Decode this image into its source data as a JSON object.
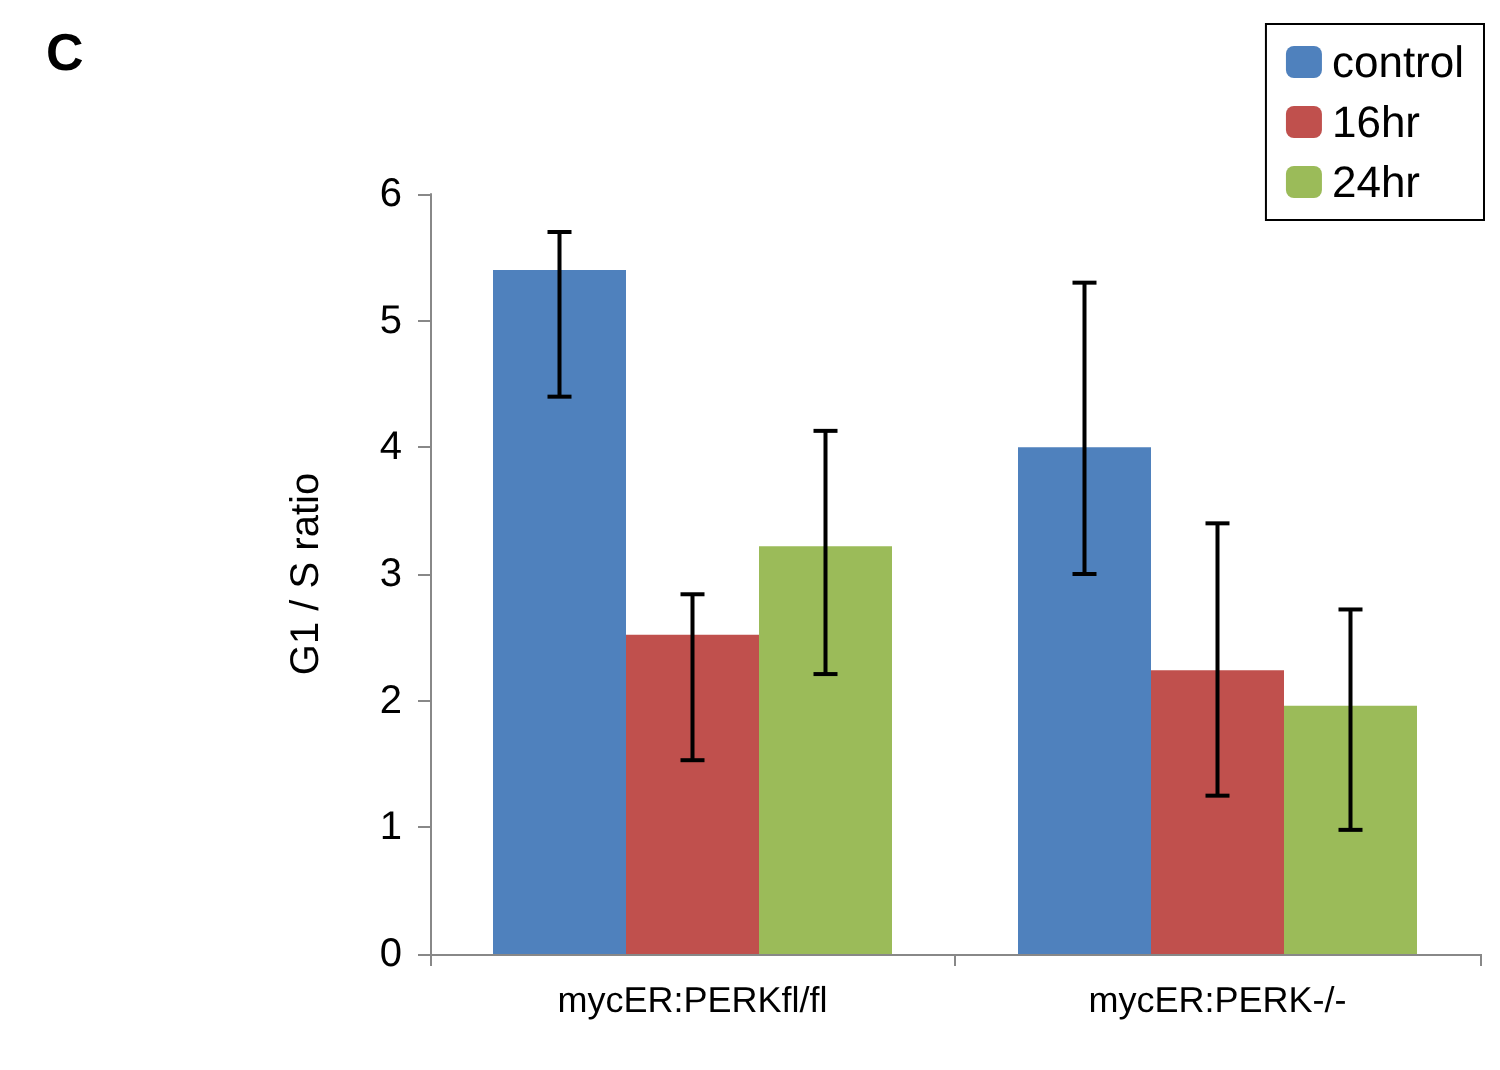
{
  "chart_data": {
    "type": "bar",
    "title": "C",
    "ylabel": "G1 / S ratio",
    "categories": [
      "mycER:PERKfl/fl",
      "mycER:PERK-/-"
    ],
    "series": [
      {
        "name": "control",
        "color": "#4f81bd",
        "values": [
          5.4,
          4.0
        ],
        "errors": [
          [
            4.4,
            5.7
          ],
          [
            3.0,
            5.3
          ]
        ]
      },
      {
        "name": "16hr",
        "color": "#c0504d",
        "values": [
          2.52,
          2.24
        ],
        "errors": [
          [
            1.53,
            2.84
          ],
          [
            1.25,
            3.4
          ]
        ]
      },
      {
        "name": "24hr",
        "color": "#9bbb59",
        "values": [
          3.22,
          1.96
        ],
        "errors": [
          [
            2.21,
            4.13
          ],
          [
            0.98,
            2.72
          ]
        ]
      }
    ],
    "ylim": [
      0,
      6
    ],
    "yticks": [
      0,
      1,
      2,
      3,
      4,
      5,
      6
    ],
    "grid": false,
    "legend": "top right"
  }
}
